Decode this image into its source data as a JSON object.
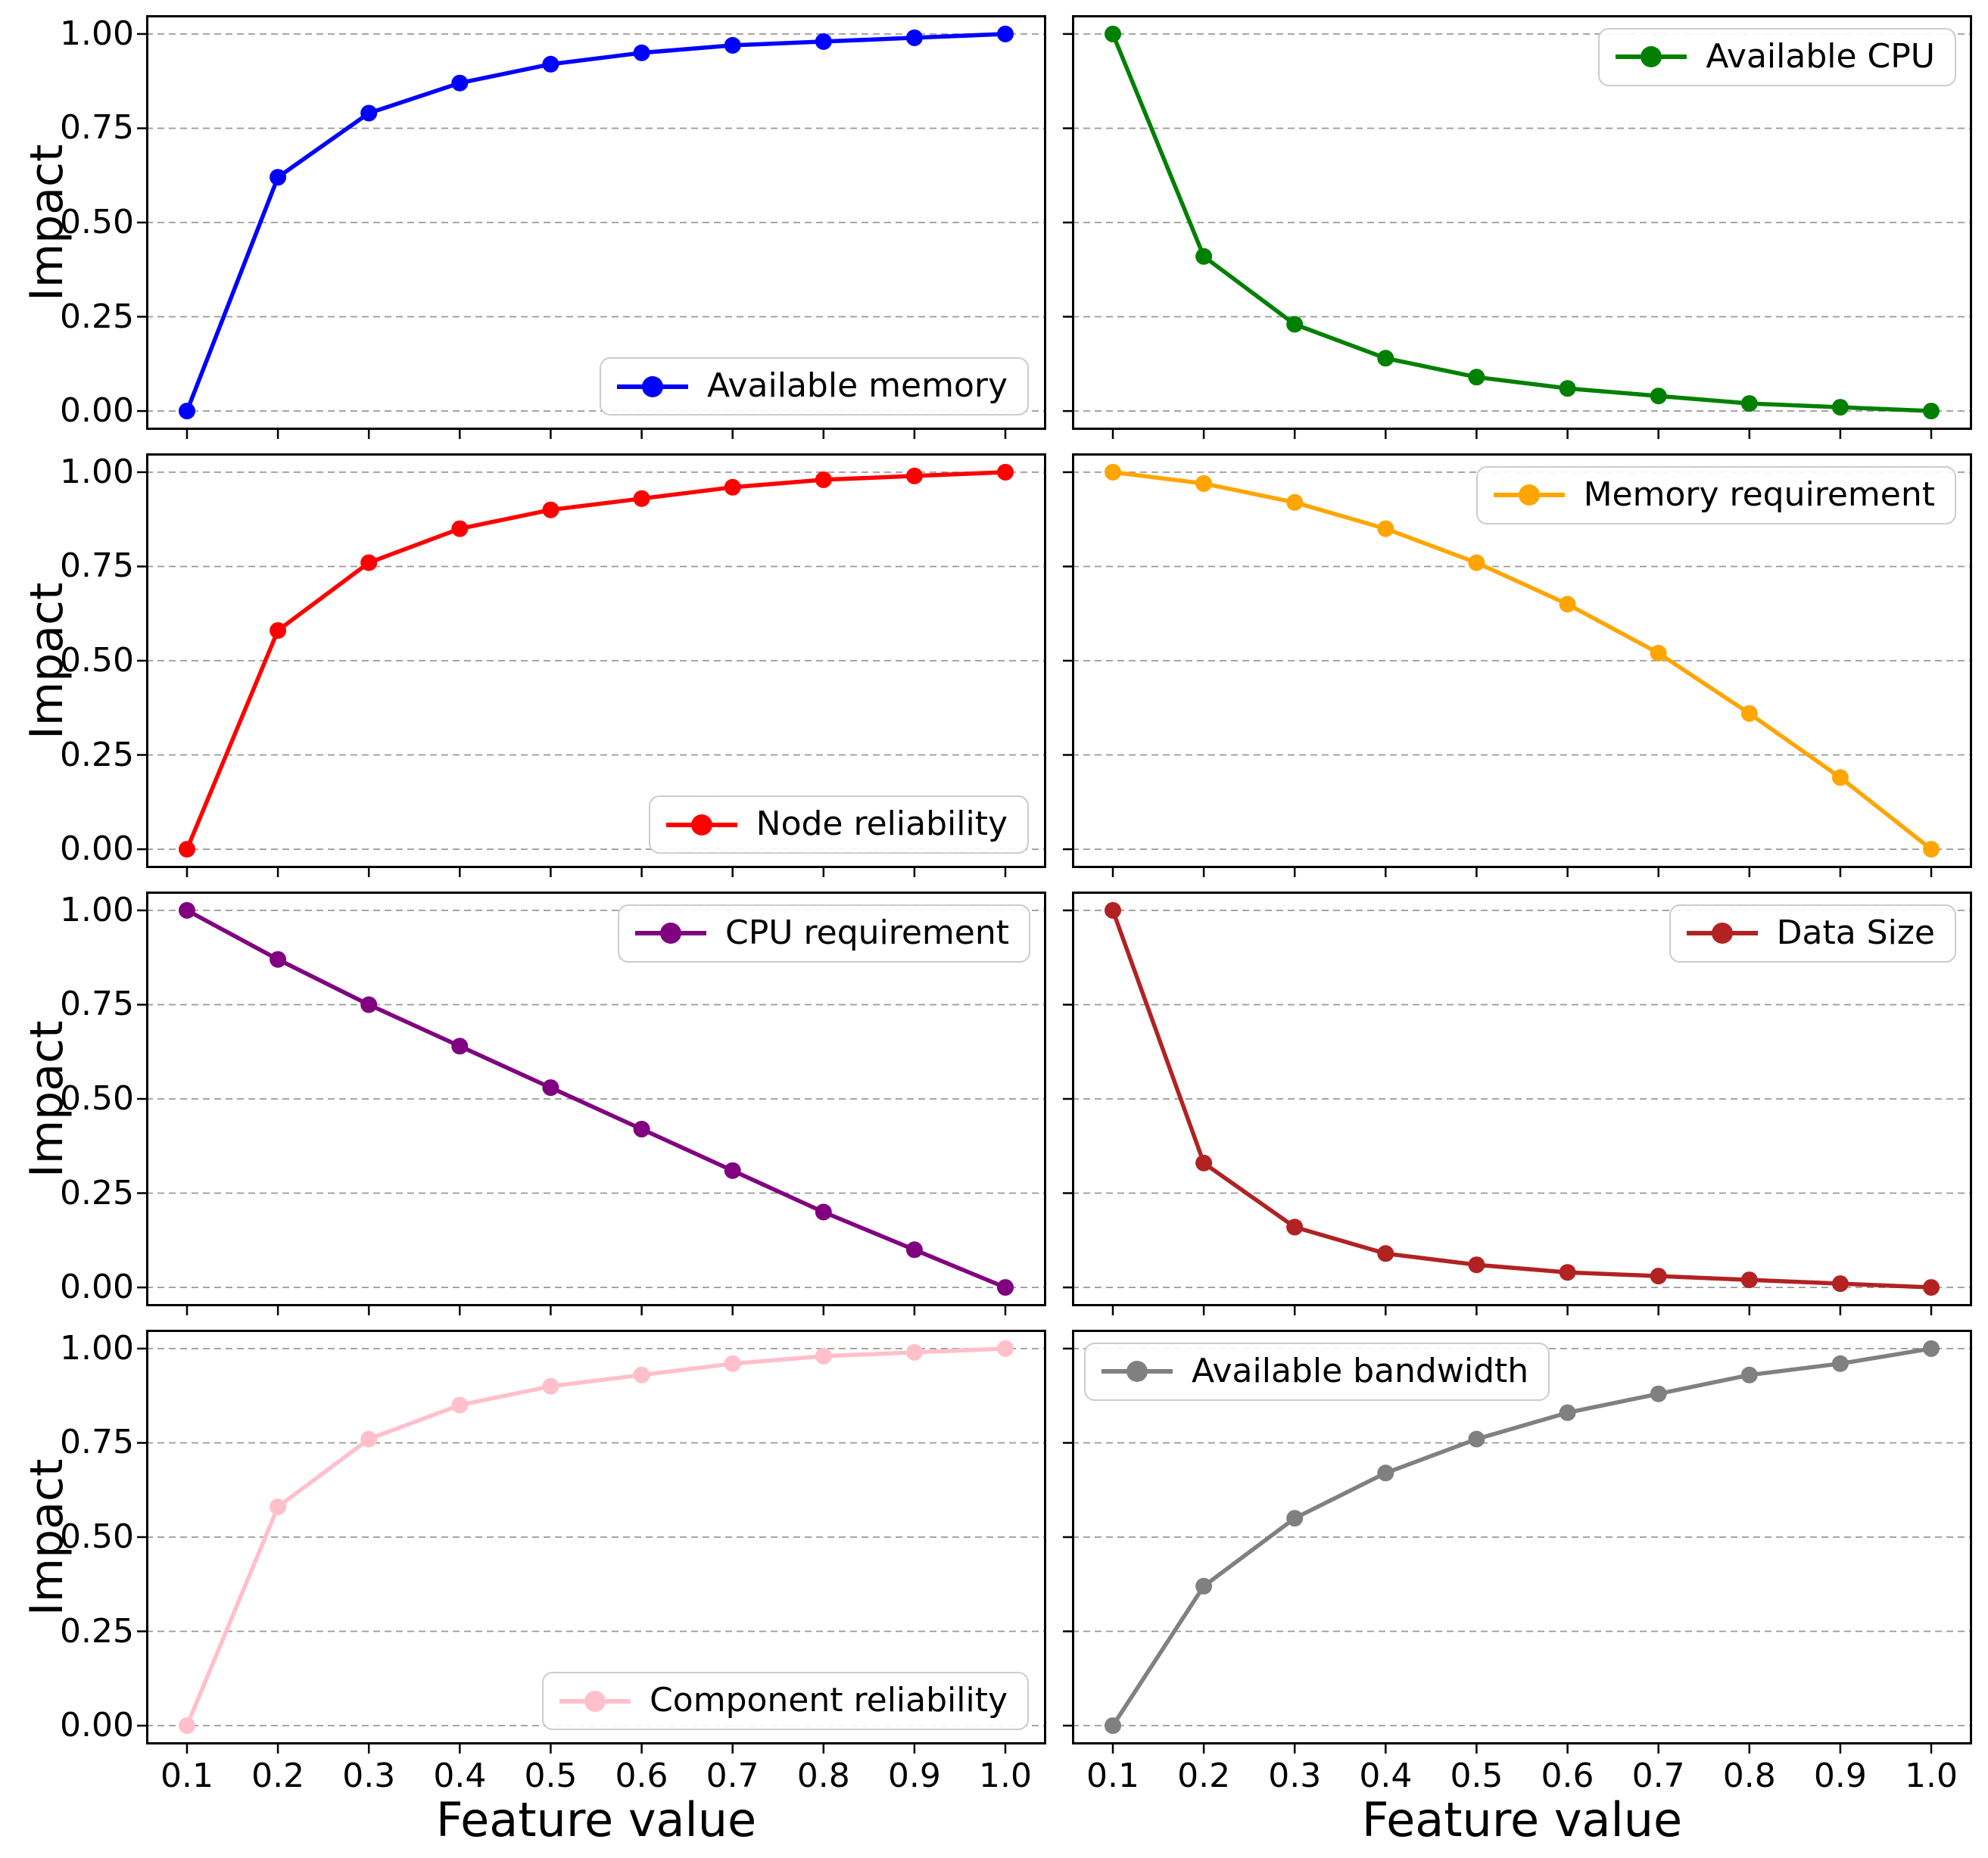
{
  "figure": {
    "xlabel": "Feature value",
    "ylabel": "Impact",
    "x": [
      0.1,
      0.2,
      0.3,
      0.4,
      0.5,
      0.6,
      0.7,
      0.8,
      0.9,
      1.0
    ],
    "xtick_labels": [
      "0.1",
      "0.2",
      "0.3",
      "0.4",
      "0.5",
      "0.6",
      "0.7",
      "0.8",
      "0.9",
      "1.0"
    ],
    "ytick_values": [
      0.0,
      0.25,
      0.5,
      0.75,
      1.0
    ],
    "ytick_labels": [
      "0.00",
      "0.25",
      "0.50",
      "0.75",
      "1.00"
    ],
    "xlim": [
      0.055,
      1.045
    ],
    "ylim": [
      -0.05,
      1.05
    ],
    "grid": "horizontal dashed",
    "grid_color": "#999999",
    "spine_color": "#000000",
    "background": "#ffffff",
    "layout": "4 rows x 2 columns, shared axes style"
  },
  "chart_data": [
    {
      "type": "line",
      "label": "Available memory",
      "color": "#0000ff",
      "marker": "circle",
      "legend_position": "lower-right",
      "x": [
        0.1,
        0.2,
        0.3,
        0.4,
        0.5,
        0.6,
        0.7,
        0.8,
        0.9,
        1.0
      ],
      "values": [
        0.0,
        0.62,
        0.79,
        0.87,
        0.92,
        0.95,
        0.97,
        0.98,
        0.99,
        1.0
      ]
    },
    {
      "type": "line",
      "label": "Available CPU",
      "color": "#008000",
      "marker": "circle",
      "legend_position": "upper-right",
      "x": [
        0.1,
        0.2,
        0.3,
        0.4,
        0.5,
        0.6,
        0.7,
        0.8,
        0.9,
        1.0
      ],
      "values": [
        1.0,
        0.41,
        0.23,
        0.14,
        0.09,
        0.06,
        0.04,
        0.02,
        0.01,
        0.0
      ]
    },
    {
      "type": "line",
      "label": "Node reliability",
      "color": "#ff0000",
      "marker": "circle",
      "legend_position": "lower-right",
      "x": [
        0.1,
        0.2,
        0.3,
        0.4,
        0.5,
        0.6,
        0.7,
        0.8,
        0.9,
        1.0
      ],
      "values": [
        0.0,
        0.58,
        0.76,
        0.85,
        0.9,
        0.93,
        0.96,
        0.98,
        0.99,
        1.0
      ]
    },
    {
      "type": "line",
      "label": "Memory requirement",
      "color": "#ffa500",
      "marker": "circle",
      "legend_position": "upper-right",
      "x": [
        0.1,
        0.2,
        0.3,
        0.4,
        0.5,
        0.6,
        0.7,
        0.8,
        0.9,
        1.0
      ],
      "values": [
        1.0,
        0.97,
        0.92,
        0.85,
        0.76,
        0.65,
        0.52,
        0.36,
        0.19,
        0.0
      ]
    },
    {
      "type": "line",
      "label": "CPU requirement",
      "color": "#800080",
      "marker": "circle",
      "legend_position": "upper-right",
      "x": [
        0.1,
        0.2,
        0.3,
        0.4,
        0.5,
        0.6,
        0.7,
        0.8,
        0.9,
        1.0
      ],
      "values": [
        1.0,
        0.87,
        0.75,
        0.64,
        0.53,
        0.42,
        0.31,
        0.2,
        0.1,
        0.0
      ]
    },
    {
      "type": "line",
      "label": "Data Size",
      "color": "#b22222",
      "marker": "circle",
      "legend_position": "upper-right",
      "x": [
        0.1,
        0.2,
        0.3,
        0.4,
        0.5,
        0.6,
        0.7,
        0.8,
        0.9,
        1.0
      ],
      "values": [
        1.0,
        0.33,
        0.16,
        0.09,
        0.06,
        0.04,
        0.03,
        0.02,
        0.01,
        0.0
      ]
    },
    {
      "type": "line",
      "label": "Component reliability",
      "color": "#ffc0cb",
      "marker": "circle",
      "legend_position": "lower-right",
      "x": [
        0.1,
        0.2,
        0.3,
        0.4,
        0.5,
        0.6,
        0.7,
        0.8,
        0.9,
        1.0
      ],
      "values": [
        0.0,
        0.58,
        0.76,
        0.85,
        0.9,
        0.93,
        0.96,
        0.98,
        0.99,
        1.0
      ]
    },
    {
      "type": "line",
      "label": "Available bandwidth",
      "color": "#808080",
      "marker": "circle",
      "legend_position": "upper-left",
      "x": [
        0.1,
        0.2,
        0.3,
        0.4,
        0.5,
        0.6,
        0.7,
        0.8,
        0.9,
        1.0
      ],
      "values": [
        0.0,
        0.37,
        0.55,
        0.67,
        0.76,
        0.83,
        0.88,
        0.93,
        0.96,
        1.0
      ]
    }
  ]
}
